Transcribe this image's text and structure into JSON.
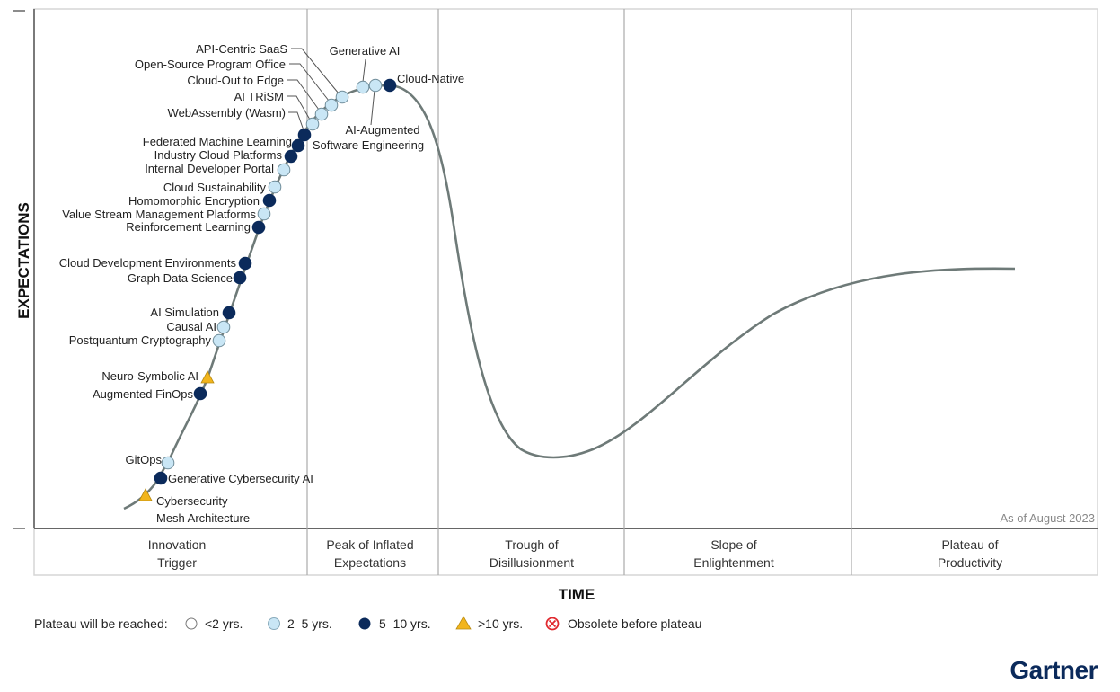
{
  "y_axis_label": "EXPECTATIONS",
  "x_axis_label": "TIME",
  "as_of": "As of August 2023",
  "phases": [
    {
      "line1": "Innovation",
      "line2": "Trigger"
    },
    {
      "line1": "Peak of Inflated",
      "line2": "Expectations"
    },
    {
      "line1": "Trough of",
      "line2": "Disillusionment"
    },
    {
      "line1": "Slope of",
      "line2": "Enlightenment"
    },
    {
      "line1": "Plateau of",
      "line2": "Productivity"
    }
  ],
  "technologies": [
    {
      "name": "Cybersecurity",
      "name2": "Mesh Architecture",
      "plateau": ">10",
      "phase": "Innovation Trigger"
    },
    {
      "name": "Generative Cybersecurity AI",
      "plateau": "5-10",
      "phase": "Innovation Trigger"
    },
    {
      "name": "GitOps",
      "plateau": "2-5",
      "phase": "Innovation Trigger"
    },
    {
      "name": "Augmented FinOps",
      "plateau": "5-10",
      "phase": "Innovation Trigger"
    },
    {
      "name": "Neuro-Symbolic AI",
      "plateau": ">10",
      "phase": "Innovation Trigger"
    },
    {
      "name": "Postquantum Cryptography",
      "plateau": "2-5",
      "phase": "Innovation Trigger"
    },
    {
      "name": "Causal AI",
      "plateau": "2-5",
      "phase": "Innovation Trigger"
    },
    {
      "name": "AI Simulation",
      "plateau": "5-10",
      "phase": "Innovation Trigger"
    },
    {
      "name": "Graph Data Science",
      "plateau": "5-10",
      "phase": "Innovation Trigger"
    },
    {
      "name": "Cloud Development Environments",
      "plateau": "5-10",
      "phase": "Innovation Trigger"
    },
    {
      "name": "Reinforcement Learning",
      "plateau": "5-10",
      "phase": "Innovation Trigger"
    },
    {
      "name": "Value Stream Management Platforms",
      "plateau": "2-5",
      "phase": "Innovation Trigger"
    },
    {
      "name": "Homomorphic Encryption",
      "plateau": "5-10",
      "phase": "Innovation Trigger"
    },
    {
      "name": "Cloud Sustainability",
      "plateau": "2-5",
      "phase": "Innovation Trigger"
    },
    {
      "name": "Internal Developer Portal",
      "plateau": "2-5",
      "phase": "Innovation Trigger"
    },
    {
      "name": "Industry Cloud Platforms",
      "plateau": "5-10",
      "phase": "Innovation Trigger"
    },
    {
      "name": "Federated Machine Learning",
      "plateau": "5-10",
      "phase": "Innovation Trigger"
    },
    {
      "name": "WebAssembly (Wasm)",
      "plateau": "5-10",
      "phase": "Innovation Trigger"
    },
    {
      "name": "AI TRiSM",
      "plateau": "2-5",
      "phase": "Peak of Inflated Expectations"
    },
    {
      "name": "Cloud-Out to Edge",
      "plateau": "2-5",
      "phase": "Peak of Inflated Expectations"
    },
    {
      "name": "Open-Source Program Office",
      "plateau": "2-5",
      "phase": "Peak of Inflated Expectations"
    },
    {
      "name": "API-Centric SaaS",
      "plateau": "2-5",
      "phase": "Peak of Inflated Expectations"
    },
    {
      "name": "Generative AI",
      "plateau": "2-5",
      "phase": "Peak of Inflated Expectations"
    },
    {
      "name": "AI-Augmented",
      "name2": "Software Engineering",
      "plateau": "2-5",
      "phase": "Peak of Inflated Expectations"
    },
    {
      "name": "Cloud-Native",
      "plateau": "5-10",
      "phase": "Peak of Inflated Expectations"
    }
  ],
  "legend": {
    "title": "Plateau will be reached:",
    "items": [
      {
        "label": "<2 yrs.",
        "symbol": "white-circle",
        "color": "#ffffff"
      },
      {
        "label": "2–5 yrs.",
        "symbol": "light-blue-circle",
        "color": "#c9e6f5"
      },
      {
        "label": "5–10 yrs.",
        "symbol": "dark-navy-circle",
        "color": "#0b2a5b"
      },
      {
        "label": ">10 yrs.",
        "symbol": "yellow-triangle",
        "color": "#f2b51c"
      },
      {
        "label": "Obsolete before plateau",
        "symbol": "red-x-circle",
        "color": "#e0282e"
      }
    ]
  },
  "brand": "Gartner",
  "colors": {
    "curve": "#6e7a78",
    "light": "#c9e6f5",
    "dark": "#0b2a5b",
    "triangle": "#f2b51c",
    "brand": "#0b2a5b"
  }
}
